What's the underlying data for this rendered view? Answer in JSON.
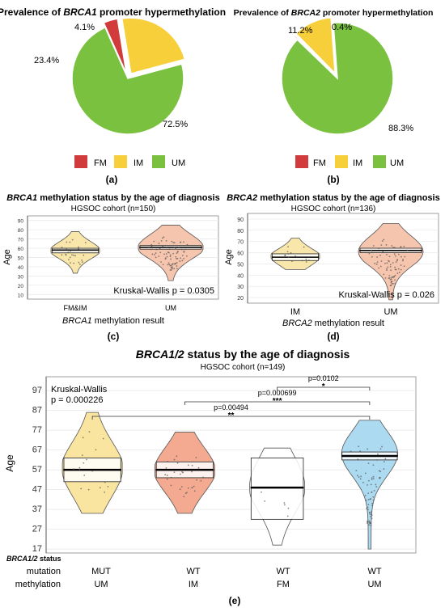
{
  "colors": {
    "FM": "#d13b3b",
    "IM": "#f7cf3a",
    "UM": "#79c13f",
    "mut_um_fill": "#f9e49a",
    "wt_im_fill": "#f2a58b",
    "wt_fm_fill": "#ffffff",
    "wt_um_fill": "#a8d8f0",
    "violin_b_fill": "#f6c2aa",
    "violin_a_fill": "#f9e5a5"
  },
  "chart_data": [
    {
      "id": "a",
      "type": "pie",
      "title_prefix": "Prevalence of ",
      "title_gene": "BRCA1",
      "title_suffix": " promoter hypermethylation",
      "slices": [
        {
          "name": "FM",
          "value": 4.1,
          "label": "4.1%"
        },
        {
          "name": "IM",
          "value": 23.4,
          "label": "23.4%"
        },
        {
          "name": "UM",
          "value": 72.5,
          "label": "72.5%"
        }
      ],
      "legend": [
        "FM",
        "IM",
        "UM"
      ],
      "panel_label": "(a)"
    },
    {
      "id": "b",
      "type": "pie",
      "title_prefix": "Prevalence of ",
      "title_gene": "BRCA2",
      "title_suffix": " promoter hypermethylation",
      "slices": [
        {
          "name": "FM",
          "value": 0.4,
          "label": "0.4%"
        },
        {
          "name": "IM",
          "value": 11.2,
          "label": "11.2%"
        },
        {
          "name": "UM",
          "value": 88.3,
          "label": "88.3%"
        }
      ],
      "legend": [
        "FM",
        "IM",
        "UM"
      ],
      "panel_label": "(b)"
    },
    {
      "id": "c",
      "type": "violin",
      "title_gene": "BRCA1",
      "title_suffix": " methylation status by the age of diagnosis",
      "subtitle": "HGSOC cohort (n=150)",
      "ylabel": "Age",
      "ylim": [
        5,
        95
      ],
      "yticks": [
        10,
        20,
        30,
        40,
        50,
        60,
        70,
        80,
        90
      ],
      "xlabel_gene": "BRCA1",
      "xlabel_suffix": " methylation result",
      "categories": [
        "FM&IM",
        "UM"
      ],
      "groups": [
        {
          "name": "FM&IM",
          "min": 33,
          "max": 78,
          "mean": 58,
          "ci": [
            55,
            60
          ]
        },
        {
          "name": "UM",
          "min": 25,
          "max": 85,
          "mean": 61,
          "ci": [
            59,
            63
          ]
        }
      ],
      "annotation": "Kruskal-Wallis p = 0.0305",
      "panel_label": "(c)"
    },
    {
      "id": "d",
      "type": "violin",
      "title_gene": "BRCA2",
      "title_suffix": " methylation status by the age of diagnosis",
      "subtitle": "HGSOC cohort (n=136)",
      "ylabel": "Age",
      "ylim": [
        15,
        95
      ],
      "yticks": [
        20,
        30,
        40,
        50,
        60,
        70,
        80,
        90
      ],
      "xlabel_gene": "BRCA2",
      "xlabel_suffix": " methylation result",
      "categories": [
        "IM",
        "UM"
      ],
      "groups": [
        {
          "name": "IM",
          "min": 45,
          "max": 73,
          "mean": 56,
          "ci": [
            53,
            59
          ]
        },
        {
          "name": "UM",
          "min": 18,
          "max": 86,
          "mean": 62,
          "ci": [
            60,
            64
          ]
        }
      ],
      "annotation": "Kruskal-Wallis  p = 0.026",
      "panel_label": "(d)"
    },
    {
      "id": "e",
      "type": "violin",
      "title_gene": "BRCA1/2",
      "title_suffix": " status by the age of diagnosis",
      "subtitle": "HGSOC cohort (n=149)",
      "ylabel": "Age",
      "ylim": [
        15,
        104
      ],
      "yticks": [
        17,
        27,
        37,
        47,
        57,
        67,
        77,
        87,
        97
      ],
      "categories": [
        "MUT / UM",
        "WT / IM",
        "WT / FM",
        "WT / UM"
      ],
      "groups": [
        {
          "name": "MUT UM",
          "min": 35,
          "max": 86,
          "mean": 57,
          "ci": [
            51,
            63
          ]
        },
        {
          "name": "WT IM",
          "min": 35,
          "max": 76,
          "mean": 57,
          "ci": [
            53,
            61
          ]
        },
        {
          "name": "WT FM",
          "min": 19,
          "max": 68,
          "mean": 48,
          "ci": [
            32,
            63
          ]
        },
        {
          "name": "WT UM",
          "min": 17,
          "max": 82,
          "mean": 64,
          "ci": [
            62,
            66
          ]
        }
      ],
      "kw_label": "Kruskal-Wallis",
      "kw_p": "p = 0.000226",
      "comparisons": [
        {
          "p": "p=0.0102",
          "stars": "*",
          "from": 3,
          "to": 4
        },
        {
          "p": "p=0.000699",
          "stars": "***",
          "from": 2,
          "to": 4
        },
        {
          "p": "p=0.00494",
          "stars": "**",
          "from": 1,
          "to": 4
        }
      ],
      "row_header_gene": "BRCA1/2",
      "row_header_suffix": " status",
      "row_labels": [
        "mutation",
        "methylation"
      ],
      "mutation_row": [
        "MUT",
        "WT",
        "WT",
        "WT"
      ],
      "methylation_row": [
        "UM",
        "IM",
        "FM",
        "UM"
      ],
      "panel_label": "(e)"
    }
  ]
}
